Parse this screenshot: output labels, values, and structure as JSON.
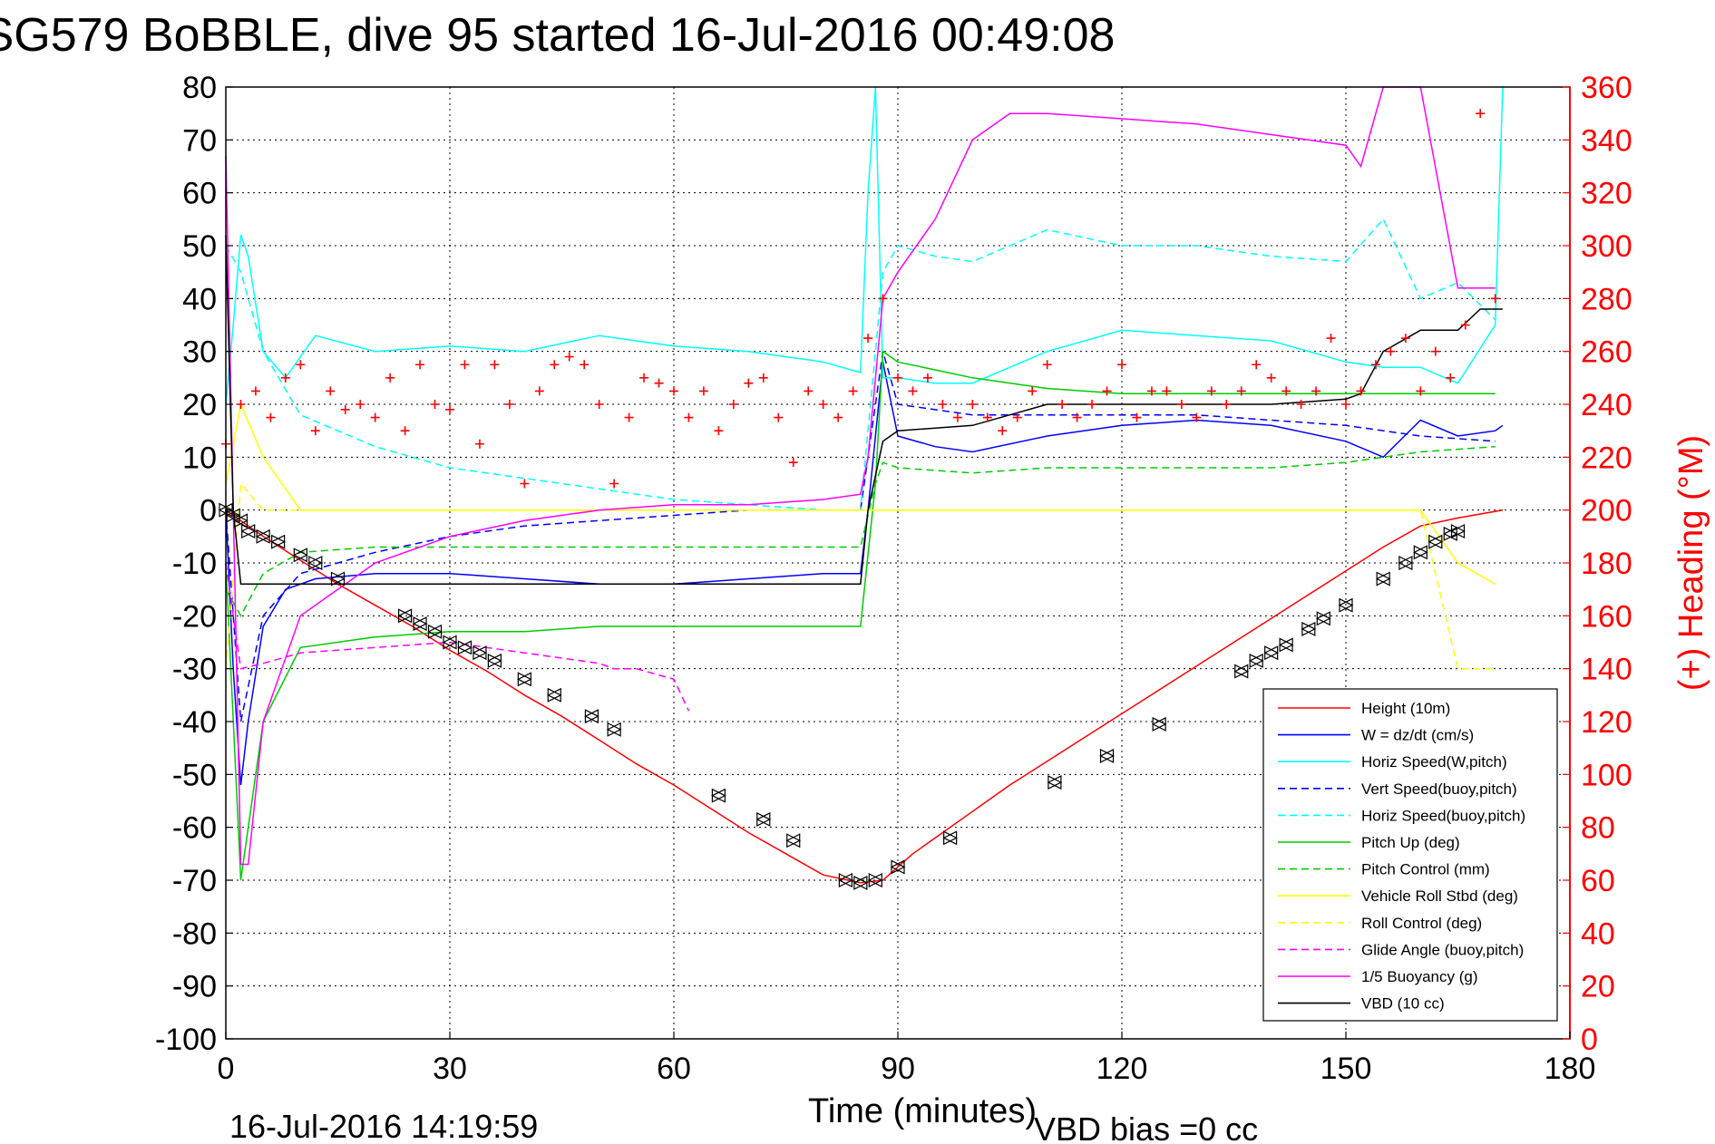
{
  "chart_data": {
    "type": "line",
    "title": "SG579 BoBBLE, dive 95 started 16-Jul-2016 00:49:08",
    "xlabel": "Time (minutes)",
    "ylabel": "",
    "ylabel_right": "(+) Heading (°M)",
    "xlim": [
      0,
      180
    ],
    "ylim": [
      -100,
      80
    ],
    "ylim_right": [
      0,
      360
    ],
    "xticks": [
      "0",
      "30",
      "60",
      "90",
      "120",
      "150",
      "180"
    ],
    "yticks": [
      "80",
      "70",
      "60",
      "50",
      "40",
      "30",
      "20",
      "10",
      "0",
      "-10",
      "-20",
      "-30",
      "-40",
      "-50",
      "-60",
      "-70",
      "-80",
      "-90",
      "-100"
    ],
    "yticks_right": [
      "360",
      "340",
      "320",
      "300",
      "280",
      "260",
      "240",
      "220",
      "200",
      "180",
      "160",
      "140",
      "120",
      "100",
      "80",
      "60",
      "40",
      "20",
      "0"
    ],
    "grid": true,
    "legend_position": "bottom-right",
    "footer_left": "16-Jul-2016 14:19:59",
    "footer_right": "VBD bias =0 cc",
    "series": [
      {
        "name": "Height (10m)",
        "color": "#ff0000",
        "style": "solid",
        "x": [
          0,
          5,
          10,
          15,
          20,
          25,
          30,
          35,
          40,
          45,
          50,
          55,
          60,
          65,
          70,
          75,
          80,
          85,
          88,
          92,
          96,
          100,
          105,
          110,
          115,
          120,
          125,
          130,
          135,
          140,
          145,
          150,
          155,
          160,
          165,
          171
        ],
        "y": [
          0,
          -5,
          -9.5,
          -14,
          -18,
          -22,
          -26.5,
          -30.5,
          -35,
          -39,
          -43.5,
          -48,
          -52,
          -56.5,
          -61,
          -65,
          -69,
          -70.5,
          -70,
          -65,
          -61,
          -57,
          -52,
          -47.5,
          -43,
          -38.5,
          -34,
          -29.5,
          -25,
          -20.5,
          -16,
          -11.5,
          -7,
          -3,
          -1.5,
          0
        ]
      },
      {
        "name": "W = dz/dt (cm/s)",
        "color": "#0000ff",
        "style": "solid",
        "x": [
          0,
          1,
          2,
          3,
          5,
          8,
          12,
          20,
          30,
          40,
          50,
          60,
          70,
          80,
          85,
          86,
          88,
          90,
          95,
          100,
          110,
          120,
          130,
          140,
          150,
          155,
          160,
          165,
          170,
          171
        ],
        "y": [
          0,
          -30,
          -52,
          -40,
          -22,
          -15,
          -13,
          -12,
          -12,
          -13,
          -14,
          -14,
          -13,
          -12,
          -12,
          0,
          28,
          14,
          12,
          11,
          14,
          16,
          17,
          16,
          13,
          10,
          17,
          14,
          15,
          16
        ]
      },
      {
        "name": "Horiz Speed(W,pitch)",
        "color": "#00ffff",
        "style": "solid",
        "x": [
          0,
          1,
          2,
          3,
          5,
          8,
          12,
          20,
          30,
          40,
          50,
          60,
          70,
          80,
          85,
          86,
          87,
          88,
          90,
          95,
          100,
          110,
          120,
          130,
          140,
          150,
          155,
          160,
          165,
          170,
          171
        ],
        "y": [
          20,
          35,
          52,
          48,
          30,
          25,
          33,
          30,
          31,
          30,
          33,
          31,
          30,
          28,
          26,
          60,
          80,
          25,
          25,
          24,
          24,
          30,
          34,
          33,
          32,
          28,
          27,
          27,
          24,
          35,
          80
        ]
      },
      {
        "name": "Vert Speed(buoy,pitch)",
        "color": "#0000ff",
        "style": "dashed",
        "x": [
          0,
          2,
          5,
          10,
          20,
          30,
          40,
          50,
          60,
          70,
          80,
          85,
          87,
          88,
          90,
          100,
          110,
          120,
          130,
          140,
          150,
          160,
          170
        ],
        "y": [
          0,
          -40,
          -20,
          -12,
          -8,
          -5,
          -3,
          -2,
          -1,
          0,
          0,
          0,
          20,
          30,
          20,
          18,
          18,
          18,
          18,
          17,
          16,
          14,
          13
        ]
      },
      {
        "name": "Horiz Speed(buoy,pitch)",
        "color": "#00ffff",
        "style": "dashed",
        "x": [
          0,
          2,
          5,
          10,
          20,
          30,
          40,
          50,
          60,
          70,
          80,
          85,
          87,
          88,
          90,
          95,
          100,
          110,
          120,
          130,
          140,
          150,
          155,
          160,
          165,
          170
        ],
        "y": [
          50,
          45,
          30,
          18,
          12,
          8,
          6,
          4,
          2,
          1,
          0,
          0,
          30,
          45,
          50,
          48,
          47,
          53,
          50,
          50,
          48,
          47,
          55,
          40,
          43,
          36
        ]
      },
      {
        "name": "Pitch Up (deg)",
        "color": "#00cc00",
        "style": "solid",
        "x": [
          0,
          2,
          5,
          10,
          20,
          30,
          40,
          50,
          60,
          70,
          80,
          85,
          87,
          88,
          90,
          100,
          110,
          120,
          130,
          140,
          150,
          160,
          170
        ],
        "y": [
          -10,
          -70,
          -40,
          -26,
          -24,
          -23,
          -23,
          -22,
          -22,
          -22,
          -22,
          -22,
          5,
          30,
          28,
          25,
          23,
          22,
          22,
          22,
          22,
          22,
          22
        ]
      },
      {
        "name": "Pitch Control (mm)",
        "color": "#00cc00",
        "style": "dashed",
        "x": [
          0,
          2,
          5,
          10,
          20,
          30,
          40,
          50,
          60,
          70,
          80,
          85,
          87,
          88,
          90,
          100,
          110,
          120,
          130,
          140,
          150,
          160,
          170
        ],
        "y": [
          -15,
          -20,
          -12,
          -8,
          -7,
          -7,
          -7,
          -7,
          -7,
          -7,
          -7,
          -7,
          5,
          9,
          8,
          7,
          8,
          8,
          8,
          8,
          9,
          11,
          12
        ]
      },
      {
        "name": "Vehicle Roll Stbd (deg)",
        "color": "#ffff00",
        "style": "solid",
        "x": [
          0,
          2,
          5,
          10,
          20,
          30,
          40,
          50,
          60,
          70,
          80,
          85,
          87,
          88,
          90,
          100,
          110,
          120,
          130,
          140,
          150,
          160,
          165,
          170
        ],
        "y": [
          5,
          20,
          10,
          0,
          0,
          0,
          0,
          0,
          0,
          0,
          0,
          0,
          0,
          0,
          0,
          0,
          0,
          0,
          0,
          0,
          0,
          0,
          -10,
          -14
        ]
      },
      {
        "name": "Roll Control (deg)",
        "color": "#ffff00",
        "style": "dashed",
        "x": [
          0,
          2,
          5,
          10,
          20,
          30,
          40,
          50,
          60,
          70,
          80,
          85,
          90,
          100,
          110,
          120,
          130,
          140,
          150,
          160,
          165,
          170
        ],
        "y": [
          -30,
          5,
          0,
          0,
          0,
          0,
          0,
          0,
          0,
          0,
          0,
          0,
          0,
          0,
          0,
          0,
          0,
          0,
          0,
          0,
          -30,
          -30
        ]
      },
      {
        "name": "Glide Angle (buoy,pitch)",
        "color": "#ff00ff",
        "style": "dashed",
        "x": [
          0,
          2,
          5,
          10,
          20,
          30,
          40,
          50,
          52,
          55,
          60,
          62
        ],
        "y": [
          -10,
          -30,
          -29,
          -27,
          -26,
          -25,
          -27,
          -29,
          -30,
          -30,
          -32,
          -38
        ]
      },
      {
        "name": "1/5 Buoyancy (g)",
        "color": "#ff00ff",
        "style": "solid",
        "x": [
          0,
          2,
          3,
          5,
          10,
          20,
          30,
          40,
          50,
          60,
          70,
          80,
          85,
          86,
          88,
          90,
          95,
          100,
          105,
          110,
          120,
          130,
          140,
          150,
          152,
          155,
          160,
          165,
          170
        ],
        "y": [
          67,
          -67,
          -67,
          -40,
          -20,
          -10,
          -5,
          -2,
          0,
          1,
          1,
          2,
          3,
          10,
          40,
          45,
          55,
          70,
          75,
          75,
          74,
          73,
          71,
          69,
          65,
          80,
          80,
          42,
          42
        ]
      },
      {
        "name": "VBD (10 cc)",
        "color": "#000000",
        "style": "solid",
        "x": [
          0,
          1,
          2,
          80,
          85,
          86,
          88,
          90,
          100,
          105,
          110,
          120,
          130,
          140,
          150,
          152,
          155,
          160,
          165,
          168,
          171
        ],
        "y": [
          52,
          0,
          -14,
          -14,
          -14,
          0,
          13,
          15,
          16,
          18,
          20,
          20,
          20,
          20,
          21,
          22,
          30,
          34,
          34,
          38,
          38
        ]
      },
      {
        "name": "Heading",
        "axis": "right",
        "color": "#ff0000",
        "style": "markers-plus",
        "x": [
          0,
          2,
          4,
          6,
          8,
          10,
          12,
          14,
          16,
          18,
          20,
          22,
          24,
          26,
          28,
          30,
          32,
          34,
          36,
          38,
          40,
          42,
          44,
          46,
          48,
          50,
          52,
          54,
          56,
          58,
          60,
          62,
          64,
          66,
          68,
          70,
          72,
          74,
          76,
          78,
          80,
          82,
          84,
          86,
          88,
          90,
          92,
          94,
          96,
          98,
          100,
          102,
          104,
          106,
          108,
          110,
          112,
          114,
          116,
          118,
          120,
          122,
          124,
          126,
          128,
          130,
          132,
          134,
          136,
          138,
          140,
          142,
          144,
          146,
          148,
          150,
          152,
          154,
          156,
          158,
          160,
          162,
          164,
          166,
          168,
          170
        ],
        "y": [
          225,
          240,
          245,
          235,
          250,
          255,
          230,
          245,
          238,
          240,
          235,
          250,
          230,
          255,
          240,
          238,
          255,
          225,
          255,
          240,
          210,
          245,
          255,
          258,
          255,
          240,
          210,
          235,
          250,
          248,
          245,
          235,
          245,
          230,
          240,
          248,
          250,
          235,
          218,
          245,
          240,
          235,
          245,
          265,
          280,
          250,
          245,
          250,
          240,
          235,
          240,
          235,
          230,
          235,
          245,
          255,
          240,
          235,
          240,
          245,
          255,
          235,
          245,
          245,
          240,
          235,
          245,
          240,
          245,
          255,
          250,
          245,
          240,
          245,
          265,
          240,
          245,
          255,
          260,
          265,
          245,
          260,
          250,
          270,
          350,
          280
        ]
      }
    ],
    "depth_markers": {
      "x": [
        0,
        1,
        2,
        3,
        5,
        7,
        10,
        12,
        15,
        24,
        26,
        28,
        30,
        32,
        34,
        36,
        40,
        44,
        49,
        52,
        66,
        72,
        76,
        83,
        85,
        87,
        90,
        97,
        111,
        118,
        125,
        136,
        138,
        140,
        142,
        145,
        147,
        150,
        155,
        158,
        160,
        162,
        164,
        165
      ],
      "y": [
        0,
        -1,
        -2,
        -4,
        -5,
        -6,
        -8.5,
        -10,
        -13,
        -20,
        -21.5,
        -23,
        -25,
        -26,
        -27,
        -28.5,
        -32,
        -35,
        -39,
        -41.5,
        -54,
        -58.5,
        -62.5,
        -70,
        -70.5,
        -70,
        -67.5,
        -62,
        -51.5,
        -46.5,
        -40.5,
        -30.5,
        -28.5,
        -27,
        -25.5,
        -22.5,
        -20.5,
        -18,
        -13,
        -10,
        -8,
        -6,
        -4.5,
        -4
      ]
    }
  }
}
